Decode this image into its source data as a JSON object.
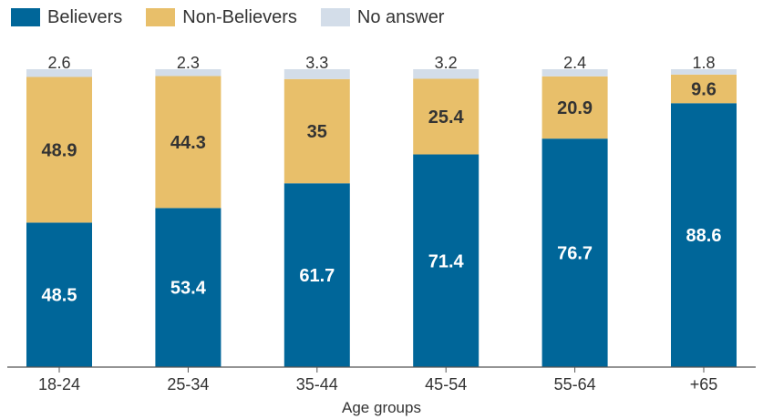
{
  "chart_data": {
    "type": "bar",
    "stacked": true,
    "categories": [
      "18-24",
      "25-34",
      "35-44",
      "45-54",
      "55-64",
      "+65"
    ],
    "series": [
      {
        "name": "Believers",
        "color": "#006699",
        "values": [
          48.5,
          53.4,
          61.7,
          71.4,
          76.7,
          88.6
        ]
      },
      {
        "name": "Non-Believers",
        "color": "#e8bf6a",
        "values": [
          48.9,
          44.3,
          35,
          25.4,
          20.9,
          9.6
        ]
      },
      {
        "name": "No answer",
        "color": "#d3dde9",
        "values": [
          2.6,
          2.3,
          3.3,
          3.2,
          2.4,
          1.8
        ]
      }
    ],
    "xlabel": "Age groups",
    "ylabel": "",
    "ylim": [
      0,
      100
    ],
    "legend": "top-left",
    "grid": false
  }
}
